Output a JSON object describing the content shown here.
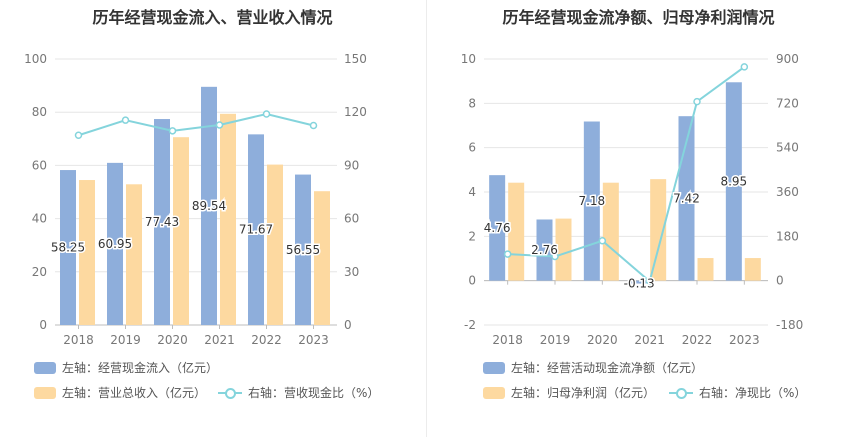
{
  "chart_data": [
    {
      "type": "bar",
      "title": "历年经营现金流入、营业收入情况",
      "categories": [
        "2018",
        "2019",
        "2020",
        "2021",
        "2022",
        "2023"
      ],
      "left_axis": {
        "ylim": [
          0,
          100
        ],
        "ticks": [
          "0",
          "20",
          "40",
          "60",
          "80",
          "100"
        ]
      },
      "right_axis": {
        "ylim": [
          0,
          150
        ],
        "ticks": [
          "0",
          "30",
          "60",
          "90",
          "120",
          "150"
        ]
      },
      "series": [
        {
          "name": "左轴：经营现金流入（亿元）",
          "kind": "bar",
          "axis": "left",
          "color": "#8eaedb",
          "values": [
            58.25,
            60.95,
            77.43,
            89.54,
            71.67,
            56.55
          ],
          "labels": [
            "58.25",
            "60.95",
            "77.43",
            "89.54",
            "71.67",
            "56.55"
          ]
        },
        {
          "name": "左轴：营业总收入（亿元）",
          "kind": "bar",
          "axis": "left",
          "color": "#fdd9a0",
          "values": [
            54.5,
            52.9,
            70.6,
            79.4,
            60.3,
            50.3
          ]
        },
        {
          "name": "右轴：营收现金比（%）",
          "kind": "line",
          "axis": "right",
          "color": "#84d4dc",
          "values": [
            107,
            115.5,
            109.5,
            112.8,
            119,
            112.5
          ]
        }
      ]
    },
    {
      "type": "bar",
      "title": "历年经营现金流净额、归母净利润情况",
      "categories": [
        "2018",
        "2019",
        "2020",
        "2021",
        "2022",
        "2023"
      ],
      "left_axis": {
        "ylim": [
          -2,
          10
        ],
        "ticks": [
          "-2",
          "0",
          "2",
          "4",
          "6",
          "8",
          "10"
        ]
      },
      "right_axis": {
        "ylim": [
          -180,
          900
        ],
        "ticks": [
          "-180",
          "0",
          "180",
          "360",
          "540",
          "720",
          "900"
        ]
      },
      "series": [
        {
          "name": "左轴：经营活动现金流净额（亿元）",
          "kind": "bar",
          "axis": "left",
          "color": "#8eaedb",
          "values": [
            4.76,
            2.76,
            7.18,
            -0.13,
            7.42,
            8.95
          ],
          "labels": [
            "4.76",
            "2.76",
            "7.18",
            "-0.13",
            "7.42",
            "8.95"
          ]
        },
        {
          "name": "左轴：归母净利润（亿元）",
          "kind": "bar",
          "axis": "left",
          "color": "#fdd9a0",
          "values": [
            4.42,
            2.8,
            4.42,
            4.58,
            1.02,
            1.02
          ]
        },
        {
          "name": "右轴：净现比（%）",
          "kind": "line",
          "axis": "right",
          "color": "#84d4dc",
          "values": [
            108,
            98,
            162,
            -3,
            727,
            868
          ]
        }
      ]
    }
  ]
}
